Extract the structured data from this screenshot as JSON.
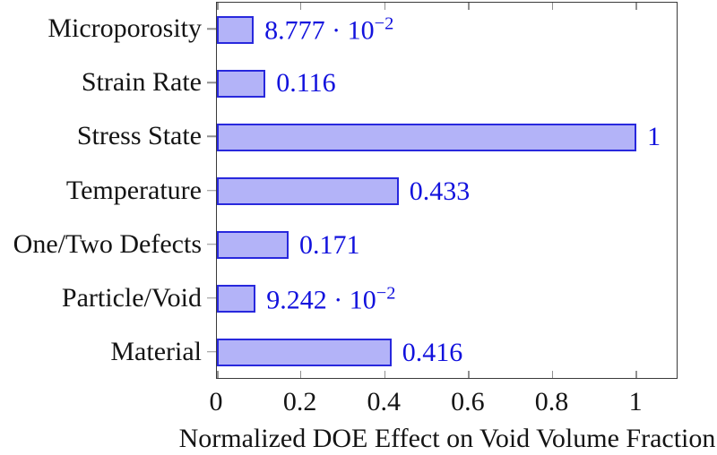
{
  "chart_data": {
    "type": "bar",
    "orientation": "horizontal",
    "title": "",
    "xlabel": "Normalized DOE Effect on Void Volume Fraction",
    "ylabel": "",
    "categories": [
      "Microporosity",
      "Strain Rate",
      "Stress State",
      "Temperature",
      "One/Two Defects",
      "Particle/Void",
      "Material"
    ],
    "values": [
      0.08777,
      0.116,
      1,
      0.433,
      0.171,
      0.09242,
      0.416
    ],
    "value_labels": [
      "8.777 · 10^−2",
      "0.116",
      "1",
      "0.433",
      "0.171",
      "9.242 · 10^−2",
      "0.416"
    ],
    "xlim": [
      0,
      1.1
    ],
    "xticks": [
      0,
      0.2,
      0.4,
      0.6,
      0.8,
      1
    ],
    "xtick_labels": [
      "0",
      "0.2",
      "0.4",
      "0.6",
      "0.8",
      "1"
    ],
    "grid": false,
    "legend": null,
    "colors": {
      "bar_fill": "#b3b3f8",
      "bar_border": "#2828dd",
      "value_text": "#1212dd",
      "axis_border": "#3a3a3a",
      "tick_mark": "#909090",
      "label_text": "#141414"
    }
  }
}
